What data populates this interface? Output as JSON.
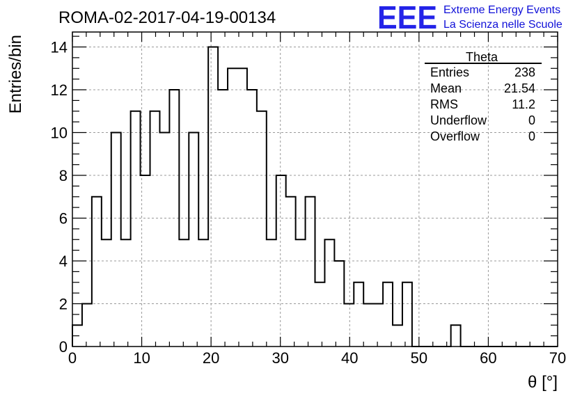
{
  "chart_data": {
    "type": "bar",
    "title": "ROMA-02-2017-04-19-00134",
    "xlabel": "θ [°]",
    "ylabel": "Entries/bin",
    "xlim": [
      0,
      70
    ],
    "ylim": [
      0,
      14.7
    ],
    "bin_width": 1.4,
    "x_ticks": [
      0,
      10,
      20,
      30,
      40,
      50,
      60,
      70
    ],
    "y_ticks": [
      0,
      2,
      4,
      6,
      8,
      10,
      12,
      14
    ],
    "grid": true,
    "values": [
      1,
      2,
      7,
      5,
      10,
      5,
      11,
      8,
      11,
      10,
      12,
      5,
      10,
      5,
      14,
      12,
      13,
      13,
      12,
      11,
      5,
      8,
      7,
      5,
      7,
      3,
      5,
      4,
      2,
      3,
      2,
      2,
      3,
      1,
      3,
      0,
      0,
      0,
      0,
      1,
      0,
      0,
      0,
      0,
      0,
      0,
      0,
      0,
      0,
      0
    ],
    "stats": {
      "name": "Theta",
      "rows": [
        {
          "label": "Entries",
          "value": "238"
        },
        {
          "label": "Mean",
          "value": "21.54"
        },
        {
          "label": "RMS",
          "value": "11.2"
        },
        {
          "label": "Underflow",
          "value": "0"
        },
        {
          "label": "Overflow",
          "value": "0"
        }
      ]
    }
  },
  "logo": {
    "mark": "EEE",
    "line1": "Extreme Energy Events",
    "line2": "La Scienza nelle Scuole",
    "color": "#2424e8"
  }
}
